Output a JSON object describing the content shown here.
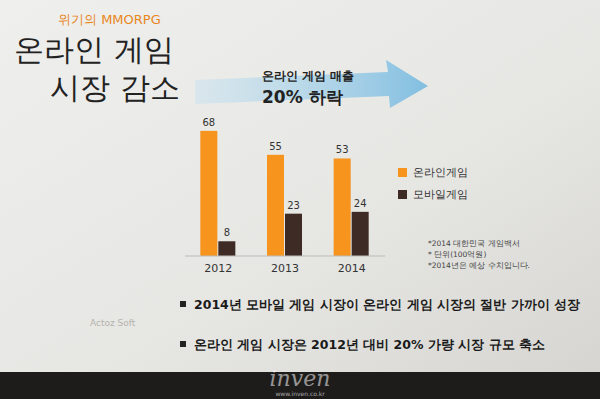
{
  "chart_data": {
    "type": "bar",
    "subtitle": "위기의 MMORPG",
    "title": [
      "온라인 게임",
      "시장 감소"
    ],
    "annotations": [
      "온라인 게임 매출",
      "20% 하락"
    ],
    "categories": [
      "2012",
      "2013",
      "2014"
    ],
    "series": [
      {
        "name": "온라인게임",
        "color": "#f7941d",
        "values": [
          68,
          55,
          53
        ]
      },
      {
        "name": "모바일게임",
        "color": "#3e2b25",
        "values": [
          8,
          23,
          24
        ]
      }
    ],
    "ylim": [
      0,
      75
    ],
    "data_labels": true,
    "tick_labels": "x",
    "notes": [
      "*2014 대한민국 게임백서",
      "* 단위(100억원)",
      "*2014년은 예상 수치입니다."
    ],
    "bullets": [
      "2014년 모바일 게임 시장이 온라인 게임 시장의 절반 가까이 성장",
      "온라인 게임 시장은 2012년 대비 20% 가량 시장 규모 축소"
    ],
    "logo": "Actoz Soft",
    "watermark": "inven",
    "watermark_url": "www.inven.co.kr"
  }
}
